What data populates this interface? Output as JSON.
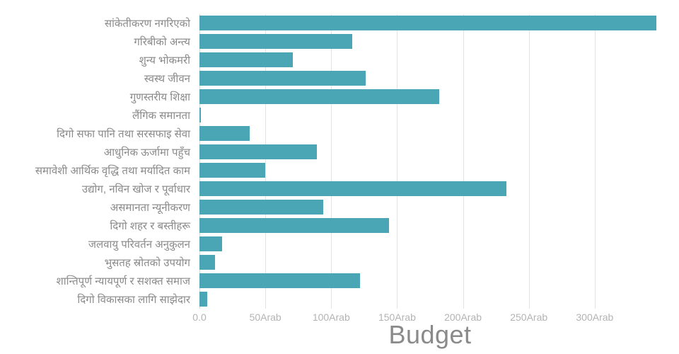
{
  "chart_data": {
    "type": "bar",
    "orientation": "horizontal",
    "title": "",
    "xlabel": "Budget",
    "ylabel": "",
    "unit": "Arab",
    "xlim": [
      0,
      350
    ],
    "grid": true,
    "bar_color": "#4AA5B4",
    "xticks": [
      {
        "value": 0,
        "label": "0.0"
      },
      {
        "value": 50,
        "label": "50Arab"
      },
      {
        "value": 100,
        "label": "100Arab"
      },
      {
        "value": 150,
        "label": "150Arab"
      },
      {
        "value": 200,
        "label": "200Arab"
      },
      {
        "value": 250,
        "label": "250Arab"
      },
      {
        "value": 300,
        "label": "300Arab"
      }
    ],
    "categories": [
      "सांकेतीकरण नगरिएको",
      "गरिबीको अन्त्य",
      "शुन्य भोकमरी",
      "स्वस्थ जीवन",
      "गुणस्तरीय शिक्षा",
      "लैंगिक समानता",
      "दिगो सफा पानि तथा सरसफाइ सेवा",
      "आधुनिक ऊर्जामा पहुँच",
      "समावेशी आर्थिक वृद्धि तथा मर्यादित काम",
      "उद्योग, नविन खोज र पूर्वाधार",
      "असमानता न्यूनीकरण",
      "दिगो शहर र बस्तीहरू",
      "जलवायु परिवर्तन अनुकुलन",
      "भुसतह स्रोतको उपयोग",
      "शान्तिपूर्ण न्यायपूर्ण र सशक्त समाज",
      "दिगो विकासका लागि साझेदार"
    ],
    "values": [
      347,
      116,
      71,
      126,
      182,
      1,
      38,
      89,
      50,
      233,
      94,
      144,
      17,
      12,
      122,
      6
    ],
    "colors": {
      "bar": "#4AA5B4",
      "gridline": "#e3e3e3",
      "tick_text": "#b3b3b3",
      "label_text": "#8a8a8a",
      "axis_title_text": "#8a8a8a",
      "background": "#ffffff"
    }
  }
}
